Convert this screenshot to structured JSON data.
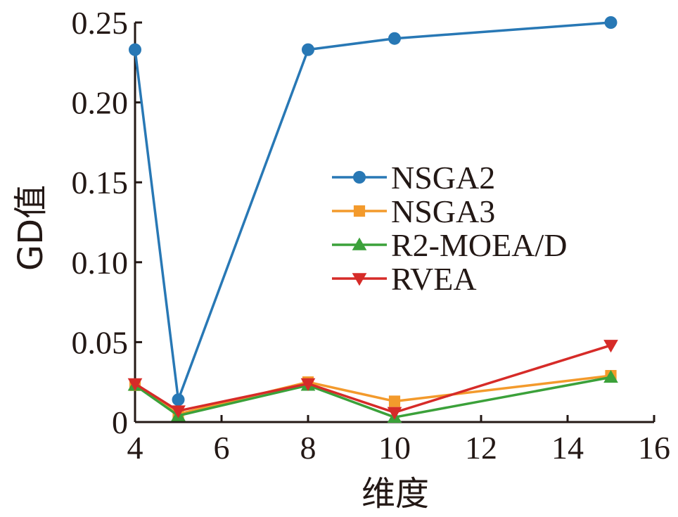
{
  "chart_data": {
    "type": "line",
    "title": "",
    "xlabel": "维度",
    "ylabel": "GD值",
    "xlim": [
      4,
      16
    ],
    "ylim": [
      0,
      0.25
    ],
    "x_ticks": [
      4,
      6,
      8,
      10,
      12,
      14,
      16
    ],
    "x_tick_labels": [
      "4",
      "6",
      "8",
      "10",
      "12",
      "14",
      "16"
    ],
    "y_ticks": [
      0,
      0.05,
      0.1,
      0.15,
      0.2,
      0.25
    ],
    "y_tick_labels": [
      "0",
      "0.05",
      "0.10",
      "0.15",
      "0.20",
      "0.25"
    ],
    "grid": false,
    "legend_position": "center-right",
    "x": [
      4,
      5,
      8,
      10,
      15
    ],
    "series": [
      {
        "name": "NSGA2",
        "color": "#2878b5",
        "marker": "circle",
        "values": [
          0.233,
          0.014,
          0.233,
          0.24,
          0.25
        ]
      },
      {
        "name": "NSGA3",
        "color": "#f39a2c",
        "marker": "square",
        "values": [
          0.023,
          0.005,
          0.025,
          0.013,
          0.029
        ]
      },
      {
        "name": "R2-MOEA/D",
        "color": "#3ba13a",
        "marker": "triangle-up",
        "values": [
          0.023,
          0.004,
          0.023,
          0.003,
          0.028
        ]
      },
      {
        "name": "RVEA",
        "color": "#d62b28",
        "marker": "triangle-down",
        "values": [
          0.024,
          0.007,
          0.024,
          0.006,
          0.048
        ]
      }
    ]
  }
}
